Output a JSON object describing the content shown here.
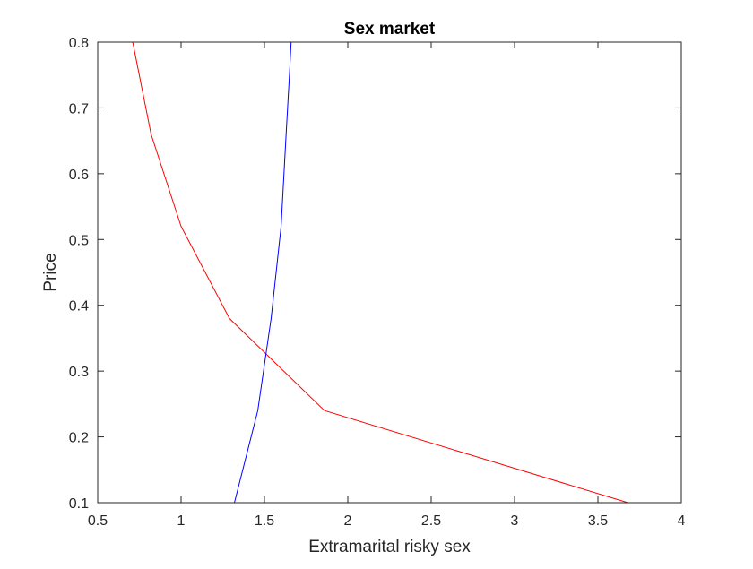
{
  "chart_data": {
    "type": "line",
    "title": "Sex market",
    "xlabel": "Extramarital risky sex",
    "ylabel": "Price",
    "xlim": [
      0.5,
      4
    ],
    "ylim": [
      0.1,
      0.8
    ],
    "xticks": [
      0.5,
      1,
      1.5,
      2,
      2.5,
      3,
      3.5,
      4
    ],
    "yticks": [
      0.1,
      0.2,
      0.3,
      0.4,
      0.5,
      0.6,
      0.7,
      0.8
    ],
    "xtick_labels": [
      "0.5",
      "1",
      "1.5",
      "2",
      "2.5",
      "3",
      "3.5",
      "4"
    ],
    "ytick_labels": [
      "0.1",
      "0.2",
      "0.3",
      "0.4",
      "0.5",
      "0.6",
      "0.7",
      "0.8"
    ],
    "grid": false,
    "series": [
      {
        "color": "#ff0000",
        "x": [
          0.71,
          0.82,
          1.0,
          1.29,
          1.86,
          3.68
        ],
        "y": [
          0.8,
          0.66,
          0.52,
          0.38,
          0.24,
          0.1
        ]
      },
      {
        "color": "#0000ff",
        "x": [
          1.32,
          1.46,
          1.54,
          1.6,
          1.63,
          1.65,
          1.66
        ],
        "y": [
          0.1,
          0.24,
          0.38,
          0.52,
          0.66,
          0.75,
          0.8
        ]
      }
    ]
  }
}
